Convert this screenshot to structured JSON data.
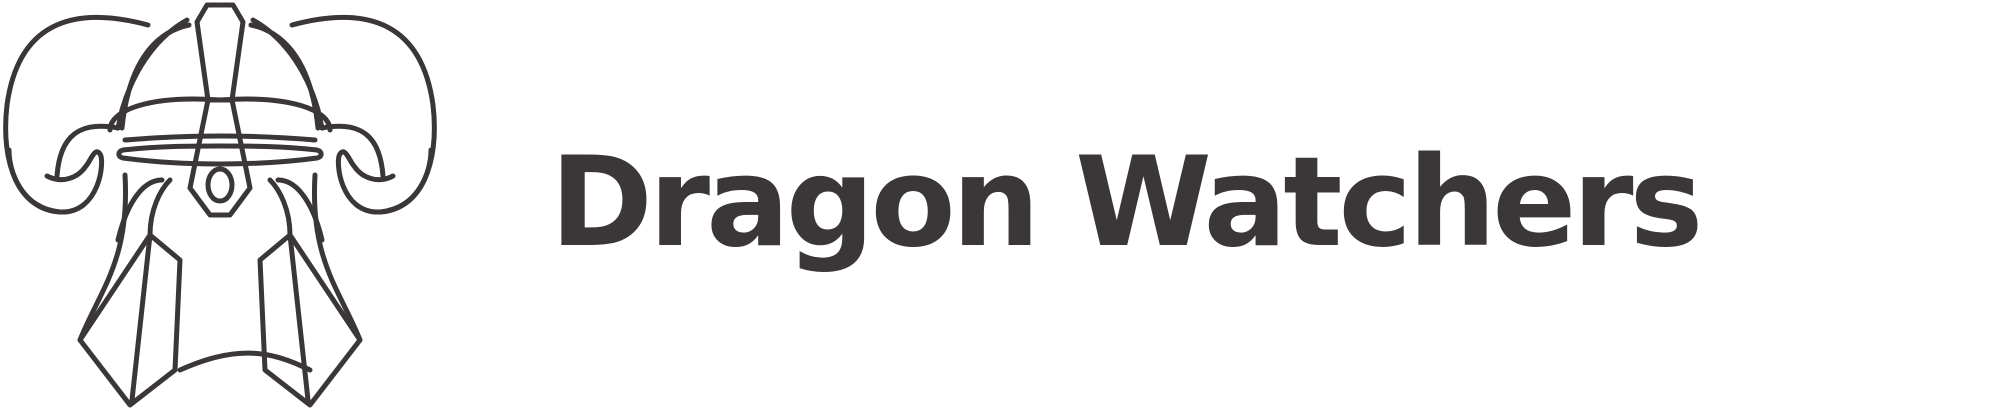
{
  "brand": {
    "name": "Dragon Watchers",
    "text_color": "#3b3738",
    "line_color": "#3b3738",
    "background": "#ffffff"
  },
  "emblem": {
    "icon": "dragon-helmet-icon"
  }
}
